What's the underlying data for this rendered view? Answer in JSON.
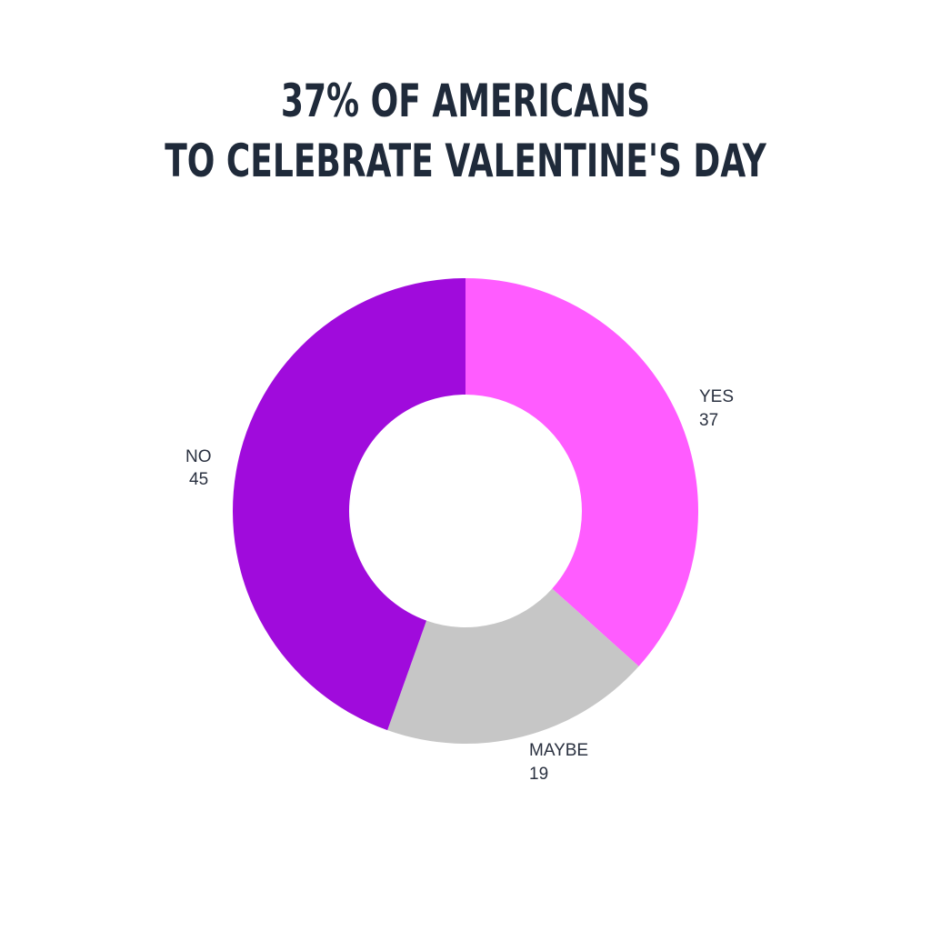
{
  "title_lines": [
    "37% OF AMERICANS",
    "TO CELEBRATE VALENTINE'S DAY"
  ],
  "chart_data": {
    "type": "pie",
    "variant": "donut",
    "title": "37% OF AMERICANS TO CELEBRATE VALENTINE'S DAY",
    "categories": [
      "YES",
      "MAYBE",
      "NO"
    ],
    "values": [
      37,
      19,
      45
    ],
    "colors": [
      "#ff5cff",
      "#c6c6c6",
      "#a00bdc"
    ],
    "start": "12 o'clock",
    "direction": "clockwise",
    "legend": "none",
    "labels": [
      {
        "name": "YES",
        "value": "37"
      },
      {
        "name": "MAYBE",
        "value": "19"
      },
      {
        "name": "NO",
        "value": "45"
      }
    ]
  }
}
